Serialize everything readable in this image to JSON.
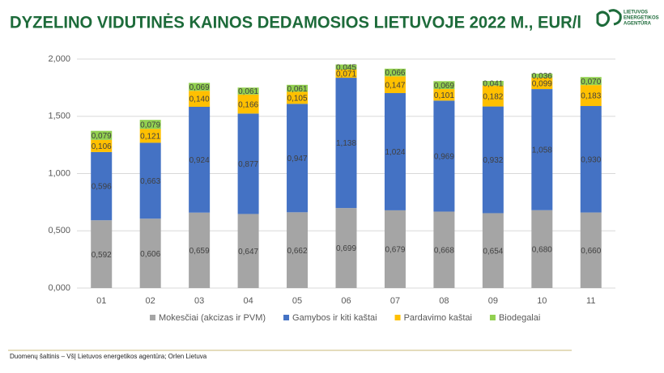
{
  "chart_data": {
    "type": "stacked-bar",
    "title": "DYZELINO VIDUTINĖS KAINOS DEDAMOSIOS LIETUVOJE 2022 M., EUR/l",
    "categories": [
      "01",
      "02",
      "03",
      "04",
      "05",
      "06",
      "07",
      "08",
      "09",
      "10",
      "11"
    ],
    "series": [
      {
        "name": "Mokesčiai (akcizas ir PVM)",
        "color": "#a5a5a5",
        "values": [
          0.592,
          0.606,
          0.659,
          0.647,
          0.662,
          0.699,
          0.679,
          0.668,
          0.654,
          0.68,
          0.66
        ],
        "value_labels": [
          "0,592",
          "0,606",
          "0,659",
          "0,647",
          "0,662",
          "0,699",
          "0,679",
          "0,668",
          "0,654",
          "0,680",
          "0,660"
        ]
      },
      {
        "name": "Gamybos ir kiti kaštai",
        "color": "#4472c4",
        "values": [
          0.596,
          0.663,
          0.924,
          0.877,
          0.947,
          1.138,
          1.024,
          0.969,
          0.932,
          1.058,
          0.93
        ],
        "value_labels": [
          "0,596",
          "0,663",
          "0,924",
          "0,877",
          "0,947",
          "1,138",
          "1,024",
          "0,969",
          "0,932",
          "1,058",
          "0,930"
        ]
      },
      {
        "name": "Pardavimo kaštai",
        "color": "#ffc000",
        "values": [
          0.106,
          0.121,
          0.14,
          0.166,
          0.105,
          0.071,
          0.147,
          0.101,
          0.182,
          0.099,
          0.183
        ],
        "value_labels": [
          "0,106",
          "0,121",
          "0,140",
          "0,166",
          "0,105",
          "0,071",
          "0,147",
          "0,101",
          "0,182",
          "0,099",
          "0,183"
        ]
      },
      {
        "name": "Biodegalai",
        "color": "#92d050",
        "values": [
          0.079,
          0.079,
          0.069,
          0.061,
          0.061,
          0.045,
          0.066,
          0.069,
          0.041,
          0.036,
          0.07
        ],
        "value_labels": [
          "0,079",
          "0,079",
          "0,069",
          "0,061",
          "0,061",
          "0,045",
          "0,066",
          "0,069",
          "0,041",
          "0,036",
          "0,070"
        ]
      }
    ],
    "ylim": [
      0,
      2
    ],
    "yticks": [
      {
        "value": 0,
        "label": "0,000"
      },
      {
        "value": 0.5,
        "label": "0,500"
      },
      {
        "value": 1,
        "label": "1,000"
      },
      {
        "value": 1.5,
        "label": "1,500"
      },
      {
        "value": 2,
        "label": "2,000"
      }
    ],
    "grid": true,
    "legend": "bottom"
  },
  "logo": [
    "LIETUVOS",
    "ENERGETIKOS",
    "AGENTŪRA"
  ],
  "source": "Duomenų šaltinis – VšĮ Lietuvos energetikos agentūra; Orlen Lietuva"
}
